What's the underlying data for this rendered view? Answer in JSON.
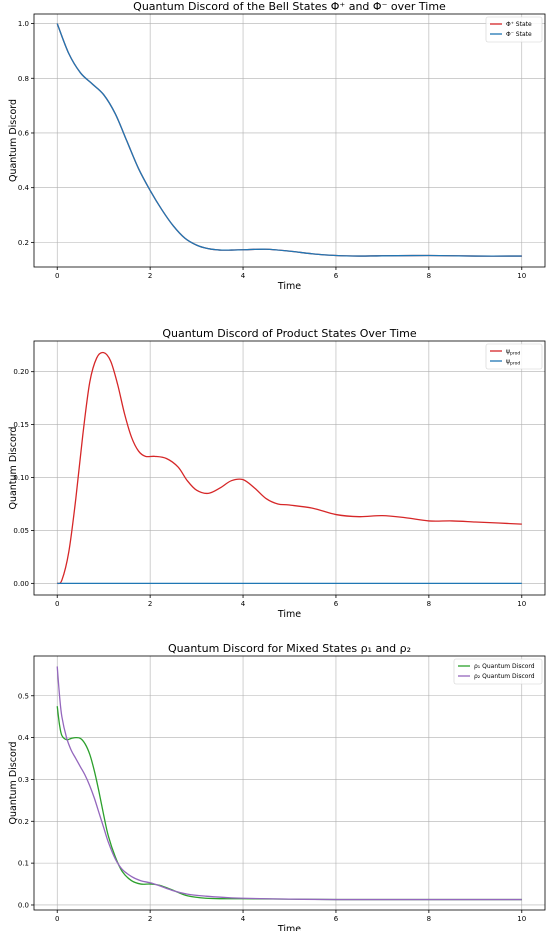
{
  "chart_data": [
    {
      "type": "line",
      "title": "Quantum Discord of the Bell States Φ⁺ and Φ⁻ over Time",
      "xlabel": "Time",
      "ylabel": "Quantum Discord",
      "xlim": [
        -0.5,
        10.5
      ],
      "ylim": [
        0.11,
        1.035
      ],
      "xticks": [
        0,
        2,
        4,
        6,
        8,
        10
      ],
      "yticks": [
        0.2,
        0.4,
        0.6,
        0.8,
        1.0
      ],
      "ytick_labels": [
        "0.2",
        "0.4",
        "0.6",
        "0.8",
        "1.0"
      ],
      "grid": true,
      "legend": "top-right",
      "series": [
        {
          "name": "Φ⁺ State",
          "color": "#d62728",
          "x": [
            0,
            0.25,
            0.5,
            0.75,
            1.0,
            1.25,
            1.5,
            1.75,
            2.0,
            2.25,
            2.5,
            2.75,
            3.0,
            3.25,
            3.5,
            3.75,
            4.0,
            4.5,
            5.0,
            5.5,
            6.0,
            6.5,
            7.0,
            8.0,
            9.0,
            10.0
          ],
          "y": [
            1.0,
            0.89,
            0.82,
            0.78,
            0.74,
            0.67,
            0.57,
            0.47,
            0.39,
            0.32,
            0.26,
            0.215,
            0.19,
            0.177,
            0.172,
            0.172,
            0.173,
            0.175,
            0.168,
            0.158,
            0.152,
            0.15,
            0.151,
            0.152,
            0.15,
            0.15
          ]
        },
        {
          "name": "Φ⁻ State",
          "color": "#1f77b4",
          "x": [
            0,
            0.25,
            0.5,
            0.75,
            1.0,
            1.25,
            1.5,
            1.75,
            2.0,
            2.25,
            2.5,
            2.75,
            3.0,
            3.25,
            3.5,
            3.75,
            4.0,
            4.5,
            5.0,
            5.5,
            6.0,
            6.5,
            7.0,
            8.0,
            9.0,
            10.0
          ],
          "y": [
            1.0,
            0.89,
            0.82,
            0.78,
            0.74,
            0.67,
            0.57,
            0.47,
            0.39,
            0.32,
            0.26,
            0.215,
            0.19,
            0.177,
            0.172,
            0.172,
            0.173,
            0.175,
            0.168,
            0.158,
            0.152,
            0.15,
            0.151,
            0.152,
            0.15,
            0.15
          ]
        }
      ]
    },
    {
      "type": "line",
      "title": "Quantum Discord of Product States Over Time",
      "xlabel": "Time",
      "ylabel": "Quantum Discord",
      "xlim": [
        -0.5,
        10.5
      ],
      "ylim": [
        -0.011,
        0.229
      ],
      "xticks": [
        0,
        2,
        4,
        6,
        8,
        10
      ],
      "yticks": [
        0.0,
        0.05,
        0.1,
        0.15,
        0.2
      ],
      "ytick_labels": [
        "0.00",
        "0.05",
        "0.10",
        "0.15",
        "0.20"
      ],
      "grid": true,
      "legend": "top-right",
      "series": [
        {
          "name": "ψ",
          "subscript": "prod",
          "color": "#d62728",
          "x": [
            0,
            0.1,
            0.25,
            0.4,
            0.55,
            0.7,
            0.85,
            1.0,
            1.15,
            1.3,
            1.45,
            1.6,
            1.75,
            1.9,
            2.1,
            2.35,
            2.6,
            2.8,
            3.0,
            3.25,
            3.5,
            3.75,
            4.0,
            4.25,
            4.5,
            4.75,
            5.0,
            5.5,
            6.0,
            6.5,
            7.0,
            7.5,
            8.0,
            8.5,
            9.0,
            9.5,
            10.0
          ],
          "y": [
            0.0,
            0.003,
            0.03,
            0.08,
            0.14,
            0.19,
            0.213,
            0.218,
            0.21,
            0.188,
            0.16,
            0.138,
            0.125,
            0.12,
            0.12,
            0.118,
            0.11,
            0.097,
            0.088,
            0.085,
            0.09,
            0.097,
            0.098,
            0.09,
            0.08,
            0.075,
            0.074,
            0.071,
            0.065,
            0.063,
            0.064,
            0.062,
            0.059,
            0.059,
            0.058,
            0.057,
            0.056
          ]
        },
        {
          "name": "ψ",
          "subscript": "prod",
          "color": "#1f77b4",
          "x": [
            0,
            10
          ],
          "y": [
            0.0,
            0.0
          ]
        }
      ]
    },
    {
      "type": "line",
      "title": "Quantum Discord for Mixed States ρ₁ and ρ₂",
      "xlabel": "Time",
      "ylabel": "Quantum Discord",
      "xlim": [
        -0.5,
        10.5
      ],
      "ylim": [
        -0.012,
        0.595
      ],
      "xticks": [
        0,
        2,
        4,
        6,
        8,
        10
      ],
      "yticks": [
        0.0,
        0.1,
        0.2,
        0.3,
        0.4,
        0.5
      ],
      "ytick_labels": [
        "0.0",
        "0.1",
        "0.2",
        "0.3",
        "0.4",
        "0.5"
      ],
      "grid": true,
      "legend": "top-right",
      "series": [
        {
          "name": "ρ₁ Quantum Discord",
          "color": "#2ca02c",
          "x": [
            0,
            0.05,
            0.1,
            0.2,
            0.3,
            0.4,
            0.5,
            0.6,
            0.7,
            0.8,
            0.9,
            1.0,
            1.1,
            1.25,
            1.4,
            1.6,
            1.8,
            2.0,
            2.2,
            2.5,
            2.8,
            3.2,
            3.6,
            4.0,
            5.0,
            6.0,
            8.0,
            10.0
          ],
          "y": [
            0.475,
            0.43,
            0.405,
            0.395,
            0.398,
            0.4,
            0.398,
            0.385,
            0.36,
            0.32,
            0.27,
            0.215,
            0.165,
            0.115,
            0.08,
            0.058,
            0.05,
            0.05,
            0.047,
            0.035,
            0.022,
            0.016,
            0.015,
            0.015,
            0.014,
            0.013,
            0.013,
            0.013
          ]
        },
        {
          "name": "ρ₂ Quantum Discord",
          "color": "#9467bd",
          "x": [
            0,
            0.05,
            0.1,
            0.2,
            0.3,
            0.4,
            0.5,
            0.6,
            0.7,
            0.8,
            0.9,
            1.0,
            1.1,
            1.25,
            1.4,
            1.6,
            1.8,
            2.0,
            2.2,
            2.5,
            2.8,
            3.2,
            3.6,
            4.0,
            5.0,
            6.0,
            8.0,
            10.0
          ],
          "y": [
            0.57,
            0.5,
            0.45,
            0.4,
            0.37,
            0.35,
            0.33,
            0.31,
            0.285,
            0.255,
            0.22,
            0.185,
            0.15,
            0.11,
            0.085,
            0.068,
            0.058,
            0.053,
            0.046,
            0.034,
            0.026,
            0.021,
            0.018,
            0.016,
            0.014,
            0.013,
            0.013,
            0.013
          ]
        }
      ]
    }
  ]
}
